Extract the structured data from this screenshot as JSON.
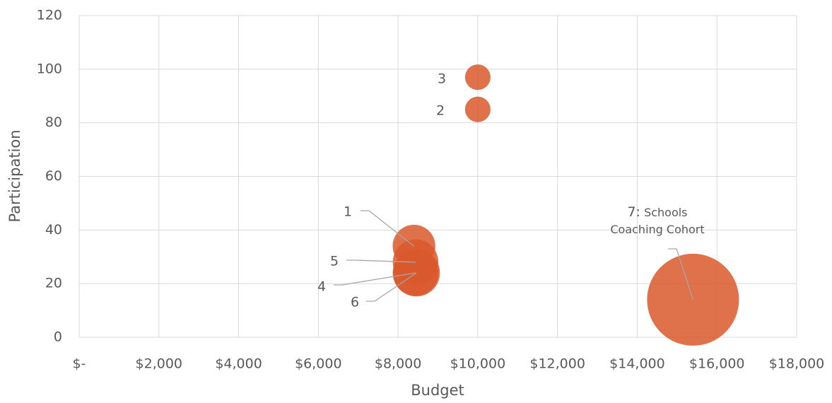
{
  "chart_data": {
    "type": "bubble",
    "x_label": "Budget",
    "y_label": "Participation",
    "labels": [
      "1",
      "2",
      "3",
      "4",
      "5",
      "6",
      "7:"
    ],
    "label_notes": [
      null,
      null,
      null,
      null,
      null,
      null,
      "Schools Coaching Cohort"
    ],
    "x": [
      8400,
      10000,
      10000,
      8440,
      8440,
      8460,
      15400
    ],
    "values": [
      34,
      85,
      97,
      24,
      28,
      24,
      14
    ],
    "sizes": [
      2.8,
      1,
      1,
      3.2,
      3.2,
      3.4,
      13
    ],
    "color": "#d9582b",
    "xlim": [
      0,
      18000
    ],
    "xticks": [
      {
        "value": 0,
        "label": "$-"
      },
      {
        "value": 2000,
        "label": "$2,000"
      },
      {
        "value": 4000,
        "label": "$4,000"
      },
      {
        "value": 6000,
        "label": "$6,000"
      },
      {
        "value": 8000,
        "label": "$8,000"
      },
      {
        "value": 10000,
        "label": "$10,000"
      },
      {
        "value": 12000,
        "label": "$12,000"
      },
      {
        "value": 14000,
        "label": "$14,000"
      },
      {
        "value": 16000,
        "label": "$16,000"
      },
      {
        "value": 18000,
        "label": "$18,000"
      }
    ],
    "ylim": [
      0,
      120
    ],
    "yticks": [
      0,
      20,
      40,
      60,
      80,
      100,
      120
    ],
    "grid": true
  }
}
